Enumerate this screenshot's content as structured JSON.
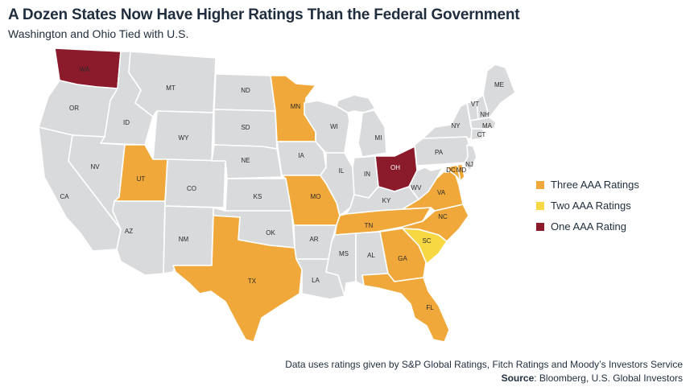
{
  "title": "A Dozen States Now Have Higher Ratings Than the Federal Government",
  "subtitle": "Washington and Ohio Tied with U.S.",
  "colors": {
    "none": "#d9dadc",
    "three": "#f0a83a",
    "two": "#f7d843",
    "one": "#8b1a2b"
  },
  "legend": [
    {
      "key": "three",
      "label": "Three AAA Ratings"
    },
    {
      "key": "two",
      "label": "Two AAA Ratings"
    },
    {
      "key": "one",
      "label": "One AAA Rating"
    }
  ],
  "states": [
    {
      "abbr": "WA",
      "rating": "one"
    },
    {
      "abbr": "OR",
      "rating": "none"
    },
    {
      "abbr": "CA",
      "rating": "none"
    },
    {
      "abbr": "ID",
      "rating": "none"
    },
    {
      "abbr": "NV",
      "rating": "none"
    },
    {
      "abbr": "MT",
      "rating": "none"
    },
    {
      "abbr": "WY",
      "rating": "none"
    },
    {
      "abbr": "UT",
      "rating": "three"
    },
    {
      "abbr": "AZ",
      "rating": "none"
    },
    {
      "abbr": "CO",
      "rating": "none"
    },
    {
      "abbr": "NM",
      "rating": "none"
    },
    {
      "abbr": "ND",
      "rating": "none"
    },
    {
      "abbr": "SD",
      "rating": "none"
    },
    {
      "abbr": "NE",
      "rating": "none"
    },
    {
      "abbr": "KS",
      "rating": "none"
    },
    {
      "abbr": "OK",
      "rating": "none"
    },
    {
      "abbr": "TX",
      "rating": "three"
    },
    {
      "abbr": "MN",
      "rating": "three"
    },
    {
      "abbr": "IA",
      "rating": "none"
    },
    {
      "abbr": "MO",
      "rating": "three"
    },
    {
      "abbr": "AR",
      "rating": "none"
    },
    {
      "abbr": "LA",
      "rating": "none"
    },
    {
      "abbr": "WI",
      "rating": "none"
    },
    {
      "abbr": "IL",
      "rating": "none"
    },
    {
      "abbr": "MI",
      "rating": "none"
    },
    {
      "abbr": "IN",
      "rating": "none"
    },
    {
      "abbr": "OH",
      "rating": "one"
    },
    {
      "abbr": "KY",
      "rating": "none"
    },
    {
      "abbr": "TN",
      "rating": "three"
    },
    {
      "abbr": "MS",
      "rating": "none"
    },
    {
      "abbr": "AL",
      "rating": "none"
    },
    {
      "abbr": "GA",
      "rating": "three"
    },
    {
      "abbr": "FL",
      "rating": "three"
    },
    {
      "abbr": "SC",
      "rating": "two"
    },
    {
      "abbr": "NC",
      "rating": "three"
    },
    {
      "abbr": "VA",
      "rating": "three"
    },
    {
      "abbr": "WV",
      "rating": "none"
    },
    {
      "abbr": "PA",
      "rating": "none"
    },
    {
      "abbr": "NY",
      "rating": "none"
    },
    {
      "abbr": "VT",
      "rating": "none"
    },
    {
      "abbr": "NH",
      "rating": "none"
    },
    {
      "abbr": "ME",
      "rating": "none"
    },
    {
      "abbr": "MA",
      "rating": "none"
    },
    {
      "abbr": "CT",
      "rating": "none"
    },
    {
      "abbr": "NJ",
      "rating": "none"
    },
    {
      "abbr": "MD",
      "rating": "three"
    },
    {
      "abbr": "DE",
      "rating": "three"
    },
    {
      "abbr": "DC",
      "rating": "none"
    }
  ],
  "footnote": "Data uses ratings given by S&P Global Ratings, Fitch Ratings and Moody’s Investors Service",
  "source": {
    "label": "Source",
    "text": ": Bloomberg, U.S. Global Investors"
  }
}
